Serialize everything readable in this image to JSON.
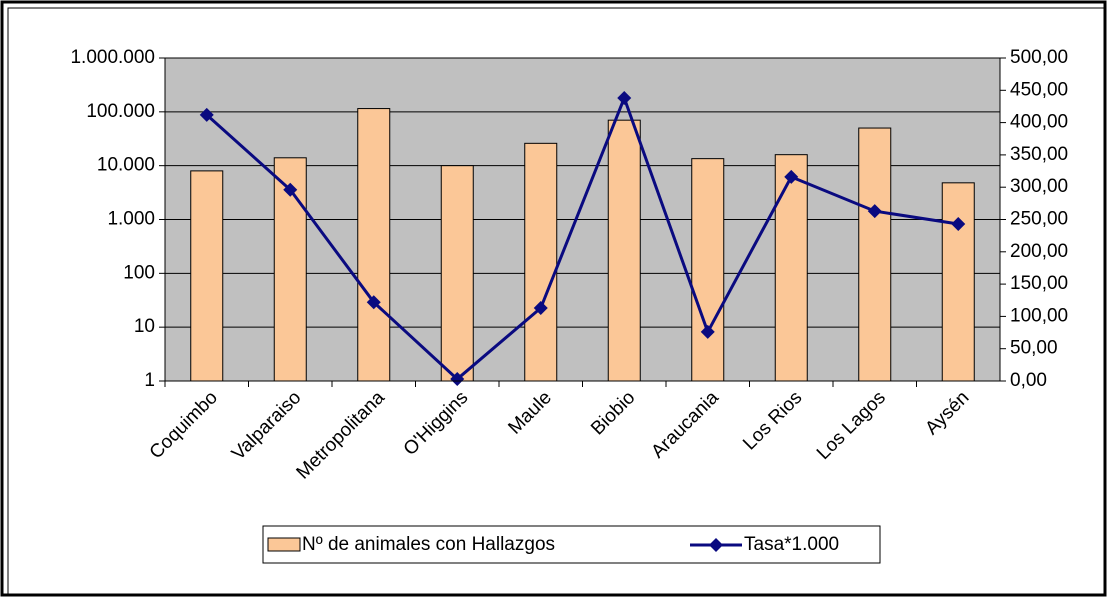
{
  "chart_data": {
    "type": "bar",
    "categories": [
      "Coquimbo",
      "Valparaiso",
      "Metropolitana",
      "O'Higgins",
      "Maule",
      "Biobio",
      "Araucania",
      "Los Rios",
      "Los Lagos",
      "Aysén"
    ],
    "series": [
      {
        "name": "Nº de animales con Hallazgos",
        "type": "bar",
        "color": "#fbc797",
        "axis": "y",
        "values": [
          8000,
          14000,
          115000,
          10000,
          26000,
          70000,
          13500,
          16000,
          50000,
          4800
        ]
      },
      {
        "name": "Tasa*1.000",
        "type": "line",
        "color": "#0a0a80",
        "axis": "y2",
        "values": [
          412,
          296,
          122,
          3,
          113,
          438,
          76,
          316,
          263,
          243
        ]
      }
    ],
    "ylog": true,
    "ylim": [
      1,
      1000000
    ],
    "yticks": [
      1,
      10,
      100,
      {
        "value": 1000,
        "label": "1.000"
      },
      {
        "value": 10000,
        "label": "10.000"
      },
      {
        "value": 100000,
        "label": "100.000"
      },
      {
        "value": 1000000,
        "label": "1.000.000"
      }
    ],
    "y2lim": [
      0,
      500
    ],
    "y2ticks": [
      {
        "value": 0,
        "label": "0,00"
      },
      {
        "value": 50,
        "label": "50,00"
      },
      {
        "value": 100,
        "label": "100,00"
      },
      {
        "value": 150,
        "label": "150,00"
      },
      {
        "value": 200,
        "label": "200,00"
      },
      {
        "value": 250,
        "label": "250,00"
      },
      {
        "value": 300,
        "label": "300,00"
      },
      {
        "value": 350,
        "label": "350,00"
      },
      {
        "value": 400,
        "label": "400,00"
      },
      {
        "value": 450,
        "label": "450,00"
      },
      {
        "value": 500,
        "label": "500,00"
      }
    ],
    "grid": true,
    "plot_background": "#c0c0c0",
    "legend": "bottom"
  }
}
